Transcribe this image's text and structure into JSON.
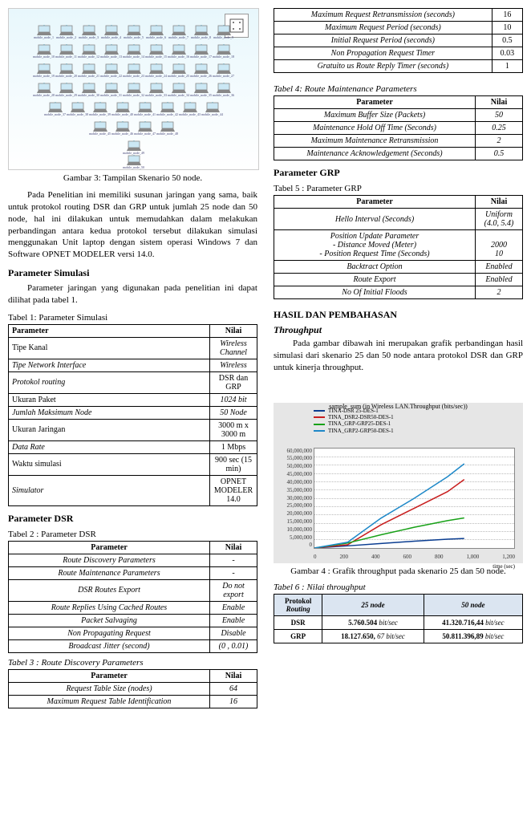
{
  "fig3": {
    "caption": "Gambar 3: Tampilan Skenario 50 node.",
    "rows": [
      9,
      9,
      9,
      9,
      8,
      4,
      1,
      1
    ],
    "row_pad": [
      0,
      1,
      0,
      1,
      2,
      5,
      8,
      8
    ],
    "row_top": [
      20,
      44,
      68,
      92,
      116,
      140,
      164,
      182
    ],
    "node_label_prefix": "mobile_node_",
    "bg_top_color": "#e8f7fc",
    "bg_bottom_color": "#ffffff",
    "laptop_screen_color": "#cbe8f5",
    "laptop_body_color": "#888888",
    "config_label": "Mobility Config"
  },
  "para1": "Pada Penelitian ini memiliki susunan jaringan yang sama, baik untuk protokol routing DSR dan GRP untuk jumlah 25 node dan 50 node, hal ini dilakukan untuk memudahkan dalam melakukan perbandingan antara kedua protokol tersebut dilakukan simulasi menggunakan Unit laptop dengan sistem operasi Windows 7 dan Software OPNET MODELER versi 14.0.",
  "sec_param_sim": "Parameter Simulasi",
  "para2": "Parameter jaringan yang digunakan pada penelitian ini dapat dilihat pada tabel 1.",
  "tabel1": {
    "caption": "Tabel 1: Parameter Simulasi",
    "headers": [
      "Parameter",
      "Nilai"
    ],
    "rows": [
      [
        "Tipe Kanal",
        "Wireless Channel"
      ],
      [
        "Tipe Network Interface",
        "Wireless"
      ],
      [
        "Protokol routing",
        "DSR dan GRP"
      ],
      [
        "Ukuran Paket",
        "1024 bit"
      ],
      [
        "Jumlah Maksimum Node",
        "50 Node"
      ],
      [
        "Ukuran Jaringan",
        "3000 m x 3000 m"
      ],
      [
        "Data Rate",
        "1 Mbps"
      ],
      [
        "Waktu simulasi",
        "900 sec (15 min)"
      ],
      [
        "Simulator",
        "OPNET MODELER 14.0"
      ]
    ],
    "italic_left": [
      false,
      true,
      true,
      false,
      true,
      false,
      true,
      false,
      true
    ],
    "italic_right": [
      true,
      true,
      false,
      true,
      true,
      false,
      false,
      false,
      false
    ]
  },
  "sec_param_dsr": "Parameter DSR",
  "tabel2": {
    "caption": "Tabel 2 : Parameter DSR",
    "headers": [
      "Parameter",
      "Nilai"
    ],
    "rows": [
      [
        "Route Discovery Parameters",
        "-"
      ],
      [
        "Route Maintenance Parameters",
        "-"
      ],
      [
        "DSR Routes Export",
        "Do not export"
      ],
      [
        "Route Replies Using Cached Routes",
        "Enable"
      ],
      [
        "Packet Salvaging",
        "Enable"
      ],
      [
        "Non Propagating Request",
        "Disable"
      ],
      [
        "Broadcast Jitter (second)",
        "(0 , 0.01)"
      ]
    ]
  },
  "tabel3": {
    "caption": "Tabel  3 : Route Discovery Parameters",
    "headers": [
      "Parameter",
      "Nilai"
    ],
    "rows": [
      [
        "Request Table Size (nodes)",
        "64"
      ],
      [
        "Maximum Request Table Identification",
        "16"
      ],
      [
        "Maximum Request Retransmission (seconds)",
        "16"
      ],
      [
        "Maximum Request Period (seconds)",
        "10"
      ],
      [
        "Initial Request Period (seconds)",
        "0.5"
      ],
      [
        "Non Propagation Request Timer",
        "0.03"
      ],
      [
        "Gratuito us Route Reply Timer (seconds)",
        "1"
      ]
    ],
    "split_at": 2
  },
  "tabel4": {
    "caption": "Tabel 4: Route Maintenance Parameters",
    "headers": [
      "Parameter",
      "Nilai"
    ],
    "rows": [
      [
        "Maximum Buffer Size (Packets)",
        "50"
      ],
      [
        "Maintenance Hold Off Time (Seconds)",
        "0.25"
      ],
      [
        "Maximum Maintenance Retransmission",
        "2"
      ],
      [
        "Maintenance Acknowledgement (Seconds)",
        "0.5"
      ]
    ]
  },
  "sec_param_grp": "Parameter GRP",
  "tabel5": {
    "caption": "Tabel 5 : Parameter GRP",
    "headers": [
      "Parameter",
      "Nilai"
    ],
    "rows": [
      [
        "Hello Interval (Seconds)",
        "Uniform (4.0, 5.4)"
      ],
      [
        "Position Update Parameter\n- Distance Moved (Meter)\n- Position Request Time (Seconds)",
        "\n2000\n10"
      ],
      [
        "Backtract Option",
        "Enabled"
      ],
      [
        "Route Export",
        "Enabled"
      ],
      [
        "No Of Initial Floods",
        "2"
      ]
    ]
  },
  "sec_hasil": "HASIL DAN PEMBAHASAN",
  "sub_throughput": "Throughput",
  "para3": "Pada gambar dibawah ini merupakan grafik perbandingan hasil simulasi dari skenario 25 dan 50 node antara protokol DSR dan GRP untuk kinerja throughput.",
  "chart": {
    "legend": [
      {
        "label": "TINA-DSR 25-DES-1",
        "color": "#0a3d91"
      },
      {
        "label": "TINA_DSR2-DSR50-DES-1",
        "color": "#c81e1e"
      },
      {
        "label": "TINA_GRP-GRP25-DES-1",
        "color": "#17a117"
      },
      {
        "label": "TINA_GRP2-GRP50-DES-1",
        "color": "#1e88c8"
      }
    ],
    "title": "sample_sum (in Wireless LAN.Throughput (bits/sec))",
    "y_ticks": [
      "60,000,000",
      "55,000,000",
      "50,000,000",
      "45,000,000",
      "40,000,000",
      "35,000,000",
      "30,000,000",
      "25,000,000",
      "20,000,000",
      "15,000,000",
      "10,000,000",
      "5,000,000",
      "0"
    ],
    "x_ticks": [
      "0",
      "200",
      "400",
      "600",
      "800",
      "1,000",
      "1,200"
    ],
    "x_label": "time (sec)",
    "ylim": [
      0,
      60000000
    ],
    "xlim": [
      0,
      1200
    ],
    "bg_color": "#e6e6e6",
    "plot_bg": "#ffffff",
    "grid_color": "#bbbbbb",
    "series": [
      {
        "name": "DSR25",
        "color": "#0a3d91",
        "points": [
          [
            0,
            0
          ],
          [
            200,
            1300000
          ],
          [
            400,
            2700000
          ],
          [
            600,
            4100000
          ],
          [
            800,
            5300000
          ],
          [
            900,
            5760504
          ]
        ]
      },
      {
        "name": "DSR50",
        "color": "#c81e1e",
        "points": [
          [
            0,
            0
          ],
          [
            200,
            2000000
          ],
          [
            400,
            14000000
          ],
          [
            600,
            24000000
          ],
          [
            800,
            34000000
          ],
          [
            900,
            41320716
          ]
        ]
      },
      {
        "name": "GRP25",
        "color": "#17a117",
        "points": [
          [
            0,
            0
          ],
          [
            200,
            3000000
          ],
          [
            400,
            8000000
          ],
          [
            600,
            12500000
          ],
          [
            800,
            16500000
          ],
          [
            900,
            18127650
          ]
        ]
      },
      {
        "name": "GRP50",
        "color": "#1e88c8",
        "points": [
          [
            0,
            0
          ],
          [
            200,
            3500000
          ],
          [
            400,
            18000000
          ],
          [
            600,
            30000000
          ],
          [
            800,
            43000000
          ],
          [
            900,
            50811396
          ]
        ]
      }
    ],
    "line_width": 1.5
  },
  "fig4_caption": "Gambar 4 : Grafik throughput pada skenario 25 dan 50 node.",
  "tabel6": {
    "caption": "Tabel 6 : Nilai throughput",
    "headers": [
      "Protokol Routing",
      "25 node",
      "50 node"
    ],
    "rows": [
      [
        "DSR",
        "5.760.504 bit/sec",
        "41.320.716,44 bit/sec"
      ],
      [
        "GRP",
        "18.127.650, 67 bit/sec",
        "50.811.396,89 bit/sec"
      ]
    ],
    "header_bg": "#dbe5f1"
  }
}
